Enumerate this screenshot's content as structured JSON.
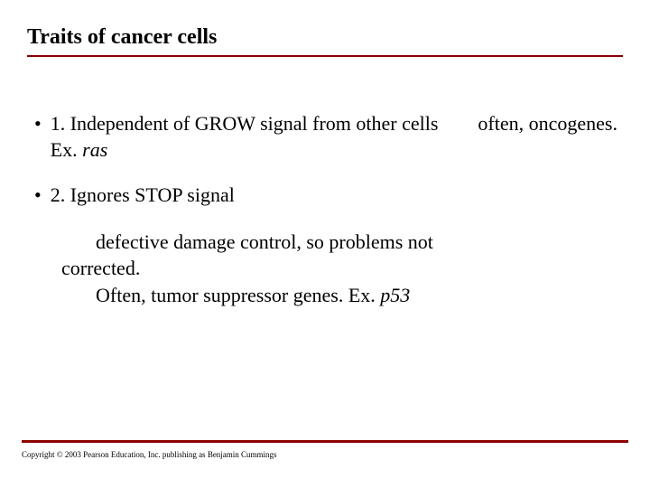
{
  "colors": {
    "accent": "#8b0000",
    "text": "#000000",
    "background": "#ffffff"
  },
  "title": "Traits of cancer cells",
  "bullet1": {
    "line1_part1": "1. Independent of GROW signal from other cells",
    "line1_spacer": "        ",
    "line1_part2": "often, oncogenes.  Ex. ",
    "line1_italic": "ras"
  },
  "bullet2": {
    "text": "2.  Ignores STOP signal"
  },
  "sub": {
    "line1_pre": "defective damage control, so problems not",
    "line2": "corrected.",
    "line3_pre": "Often, tumor suppressor genes.  Ex. ",
    "line3_italic": "p53"
  },
  "copyright": "Copyright © 2003 Pearson Education, Inc. publishing as Benjamin Cummings"
}
